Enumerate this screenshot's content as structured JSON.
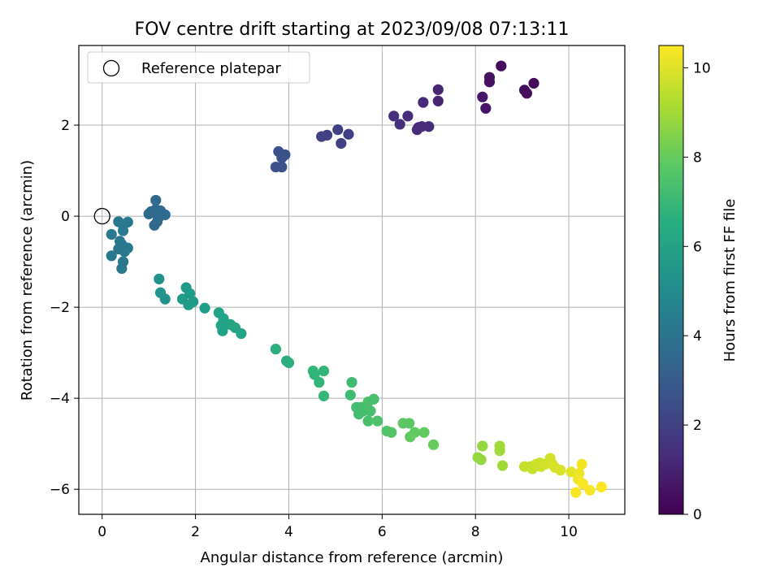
{
  "chart_data": {
    "type": "scatter",
    "title": "FOV centre drift starting at 2023/09/08 07:13:11",
    "xlabel": "Angular distance from reference (arcmin)",
    "ylabel": "Rotation from reference (arcmin)",
    "xlim": [
      -0.5,
      11.2
    ],
    "ylim": [
      -6.55,
      3.75
    ],
    "xticks": [
      0,
      2,
      4,
      6,
      8,
      10
    ],
    "yticks": [
      -6,
      -4,
      -2,
      0,
      2
    ],
    "grid": true,
    "legend": {
      "position": "upper-left",
      "entries": [
        "Reference platepar"
      ]
    },
    "reference_point": {
      "x": 0,
      "y": 0,
      "marker": "open-circle"
    },
    "colorbar": {
      "label": "Hours from first FF file",
      "range": [
        0,
        10.5
      ],
      "ticks": [
        0,
        2,
        4,
        6,
        8,
        10
      ],
      "colormap": "viridis"
    },
    "series": [
      {
        "points": [
          {
            "x": 8.55,
            "y": 3.3,
            "c": 0.3
          },
          {
            "x": 9.25,
            "y": 2.92,
            "c": 0.3
          },
          {
            "x": 9.05,
            "y": 2.77,
            "c": 0.3
          },
          {
            "x": 9.1,
            "y": 2.7,
            "c": 0.3
          },
          {
            "x": 8.3,
            "y": 3.05,
            "c": 0.5
          },
          {
            "x": 8.3,
            "y": 2.95,
            "c": 0.5
          },
          {
            "x": 8.15,
            "y": 2.62,
            "c": 0.6
          },
          {
            "x": 8.22,
            "y": 2.37,
            "c": 0.6
          },
          {
            "x": 7.2,
            "y": 2.78,
            "c": 1.1
          },
          {
            "x": 7.2,
            "y": 2.53,
            "c": 1.1
          },
          {
            "x": 6.88,
            "y": 2.5,
            "c": 1.2
          },
          {
            "x": 6.55,
            "y": 2.2,
            "c": 1.3
          },
          {
            "x": 6.25,
            "y": 2.2,
            "c": 1.4
          },
          {
            "x": 6.38,
            "y": 2.02,
            "c": 1.4
          },
          {
            "x": 6.75,
            "y": 1.9,
            "c": 1.3
          },
          {
            "x": 6.85,
            "y": 1.97,
            "c": 1.3
          },
          {
            "x": 7.0,
            "y": 1.97,
            "c": 1.3
          },
          {
            "x": 6.78,
            "y": 1.95,
            "c": 1.3
          },
          {
            "x": 5.05,
            "y": 1.9,
            "c": 2.0
          },
          {
            "x": 5.28,
            "y": 1.8,
            "c": 2.0
          },
          {
            "x": 5.12,
            "y": 1.6,
            "c": 2.0
          },
          {
            "x": 4.82,
            "y": 1.78,
            "c": 2.0
          },
          {
            "x": 4.7,
            "y": 1.75,
            "c": 2.0
          },
          {
            "x": 3.78,
            "y": 1.42,
            "c": 2.6
          },
          {
            "x": 3.92,
            "y": 1.35,
            "c": 2.6
          },
          {
            "x": 3.85,
            "y": 1.28,
            "c": 2.6
          },
          {
            "x": 3.72,
            "y": 1.08,
            "c": 2.6
          },
          {
            "x": 3.85,
            "y": 1.08,
            "c": 2.6
          },
          {
            "x": 1.15,
            "y": 0.35,
            "c": 3.6
          },
          {
            "x": 1.05,
            "y": 0.1,
            "c": 3.6
          },
          {
            "x": 1.15,
            "y": 0.15,
            "c": 3.6
          },
          {
            "x": 1.25,
            "y": 0.12,
            "c": 3.6
          },
          {
            "x": 1.35,
            "y": 0.03,
            "c": 3.6
          },
          {
            "x": 1.0,
            "y": 0.05,
            "c": 3.6
          },
          {
            "x": 1.2,
            "y": -0.05,
            "c": 3.6
          },
          {
            "x": 1.18,
            "y": -0.12,
            "c": 3.6
          },
          {
            "x": 1.12,
            "y": -0.2,
            "c": 3.6
          },
          {
            "x": 0.35,
            "y": -0.12,
            "c": 4.2
          },
          {
            "x": 0.55,
            "y": -0.13,
            "c": 4.2
          },
          {
            "x": 0.45,
            "y": -0.2,
            "c": 4.2
          },
          {
            "x": 0.45,
            "y": -0.32,
            "c": 4.2
          },
          {
            "x": 0.2,
            "y": -0.4,
            "c": 4.2
          },
          {
            "x": 0.38,
            "y": -0.55,
            "c": 4.2
          },
          {
            "x": 0.42,
            "y": -0.62,
            "c": 4.2
          },
          {
            "x": 0.55,
            "y": -0.7,
            "c": 4.2
          },
          {
            "x": 0.35,
            "y": -0.72,
            "c": 4.2
          },
          {
            "x": 0.48,
            "y": -0.78,
            "c": 4.2
          },
          {
            "x": 0.2,
            "y": -0.87,
            "c": 4.2
          },
          {
            "x": 0.45,
            "y": -1.0,
            "c": 4.2
          },
          {
            "x": 0.42,
            "y": -1.15,
            "c": 4.2
          },
          {
            "x": 1.22,
            "y": -1.38,
            "c": 5.3
          },
          {
            "x": 1.25,
            "y": -1.68,
            "c": 5.4
          },
          {
            "x": 1.35,
            "y": -1.82,
            "c": 5.4
          },
          {
            "x": 1.8,
            "y": -1.57,
            "c": 5.7
          },
          {
            "x": 1.88,
            "y": -1.7,
            "c": 5.7
          },
          {
            "x": 1.72,
            "y": -1.82,
            "c": 5.7
          },
          {
            "x": 1.95,
            "y": -1.88,
            "c": 5.7
          },
          {
            "x": 1.85,
            "y": -1.95,
            "c": 5.7
          },
          {
            "x": 2.2,
            "y": -2.02,
            "c": 5.8
          },
          {
            "x": 2.5,
            "y": -2.12,
            "c": 6.0
          },
          {
            "x": 2.6,
            "y": -2.25,
            "c": 6.0
          },
          {
            "x": 2.55,
            "y": -2.4,
            "c": 6.0
          },
          {
            "x": 2.58,
            "y": -2.52,
            "c": 6.0
          },
          {
            "x": 2.75,
            "y": -2.38,
            "c": 6.1
          },
          {
            "x": 2.85,
            "y": -2.45,
            "c": 6.1
          },
          {
            "x": 2.98,
            "y": -2.58,
            "c": 6.1
          },
          {
            "x": 3.72,
            "y": -2.92,
            "c": 6.6
          },
          {
            "x": 3.95,
            "y": -3.18,
            "c": 6.6
          },
          {
            "x": 4.0,
            "y": -3.22,
            "c": 6.6
          },
          {
            "x": 4.52,
            "y": -3.4,
            "c": 6.9
          },
          {
            "x": 4.55,
            "y": -3.48,
            "c": 6.9
          },
          {
            "x": 4.75,
            "y": -3.4,
            "c": 6.9
          },
          {
            "x": 4.65,
            "y": -3.65,
            "c": 6.9
          },
          {
            "x": 4.75,
            "y": -3.95,
            "c": 7.0
          },
          {
            "x": 5.35,
            "y": -3.65,
            "c": 7.2
          },
          {
            "x": 5.32,
            "y": -3.93,
            "c": 7.2
          },
          {
            "x": 5.45,
            "y": -4.2,
            "c": 7.3
          },
          {
            "x": 5.55,
            "y": -4.2,
            "c": 7.3
          },
          {
            "x": 5.5,
            "y": -4.35,
            "c": 7.3
          },
          {
            "x": 5.6,
            "y": -4.28,
            "c": 7.3
          },
          {
            "x": 5.7,
            "y": -4.08,
            "c": 7.4
          },
          {
            "x": 5.75,
            "y": -4.28,
            "c": 7.4
          },
          {
            "x": 5.82,
            "y": -4.02,
            "c": 7.4
          },
          {
            "x": 5.7,
            "y": -4.5,
            "c": 7.4
          },
          {
            "x": 5.9,
            "y": -4.5,
            "c": 7.5
          },
          {
            "x": 6.1,
            "y": -4.72,
            "c": 7.6
          },
          {
            "x": 6.2,
            "y": -4.75,
            "c": 7.6
          },
          {
            "x": 6.45,
            "y": -4.55,
            "c": 7.8
          },
          {
            "x": 6.58,
            "y": -4.55,
            "c": 7.8
          },
          {
            "x": 6.6,
            "y": -4.85,
            "c": 7.9
          },
          {
            "x": 6.7,
            "y": -4.75,
            "c": 7.9
          },
          {
            "x": 6.9,
            "y": -4.75,
            "c": 7.9
          },
          {
            "x": 7.1,
            "y": -5.02,
            "c": 8.0
          },
          {
            "x": 8.15,
            "y": -5.05,
            "c": 8.8
          },
          {
            "x": 8.05,
            "y": -5.3,
            "c": 8.8
          },
          {
            "x": 8.12,
            "y": -5.35,
            "c": 8.8
          },
          {
            "x": 8.52,
            "y": -5.05,
            "c": 9.0
          },
          {
            "x": 8.52,
            "y": -5.15,
            "c": 9.0
          },
          {
            "x": 8.58,
            "y": -5.48,
            "c": 9.0
          },
          {
            "x": 9.05,
            "y": -5.5,
            "c": 9.6
          },
          {
            "x": 9.18,
            "y": -5.5,
            "c": 9.6
          },
          {
            "x": 9.22,
            "y": -5.55,
            "c": 9.6
          },
          {
            "x": 9.3,
            "y": -5.45,
            "c": 9.7
          },
          {
            "x": 9.38,
            "y": -5.42,
            "c": 9.7
          },
          {
            "x": 9.4,
            "y": -5.5,
            "c": 9.7
          },
          {
            "x": 9.5,
            "y": -5.45,
            "c": 9.8
          },
          {
            "x": 9.6,
            "y": -5.32,
            "c": 9.8
          },
          {
            "x": 9.65,
            "y": -5.45,
            "c": 9.8
          },
          {
            "x": 9.7,
            "y": -5.52,
            "c": 9.9
          },
          {
            "x": 9.82,
            "y": -5.58,
            "c": 9.9
          },
          {
            "x": 10.05,
            "y": -5.62,
            "c": 10.1
          },
          {
            "x": 10.22,
            "y": -5.65,
            "c": 10.2
          },
          {
            "x": 10.28,
            "y": -5.45,
            "c": 10.3
          },
          {
            "x": 10.2,
            "y": -5.78,
            "c": 10.3
          },
          {
            "x": 10.3,
            "y": -5.88,
            "c": 10.4
          },
          {
            "x": 10.15,
            "y": -6.07,
            "c": 10.4
          },
          {
            "x": 10.45,
            "y": -6.02,
            "c": 10.4
          },
          {
            "x": 10.7,
            "y": -5.95,
            "c": 10.5
          }
        ]
      }
    ]
  }
}
